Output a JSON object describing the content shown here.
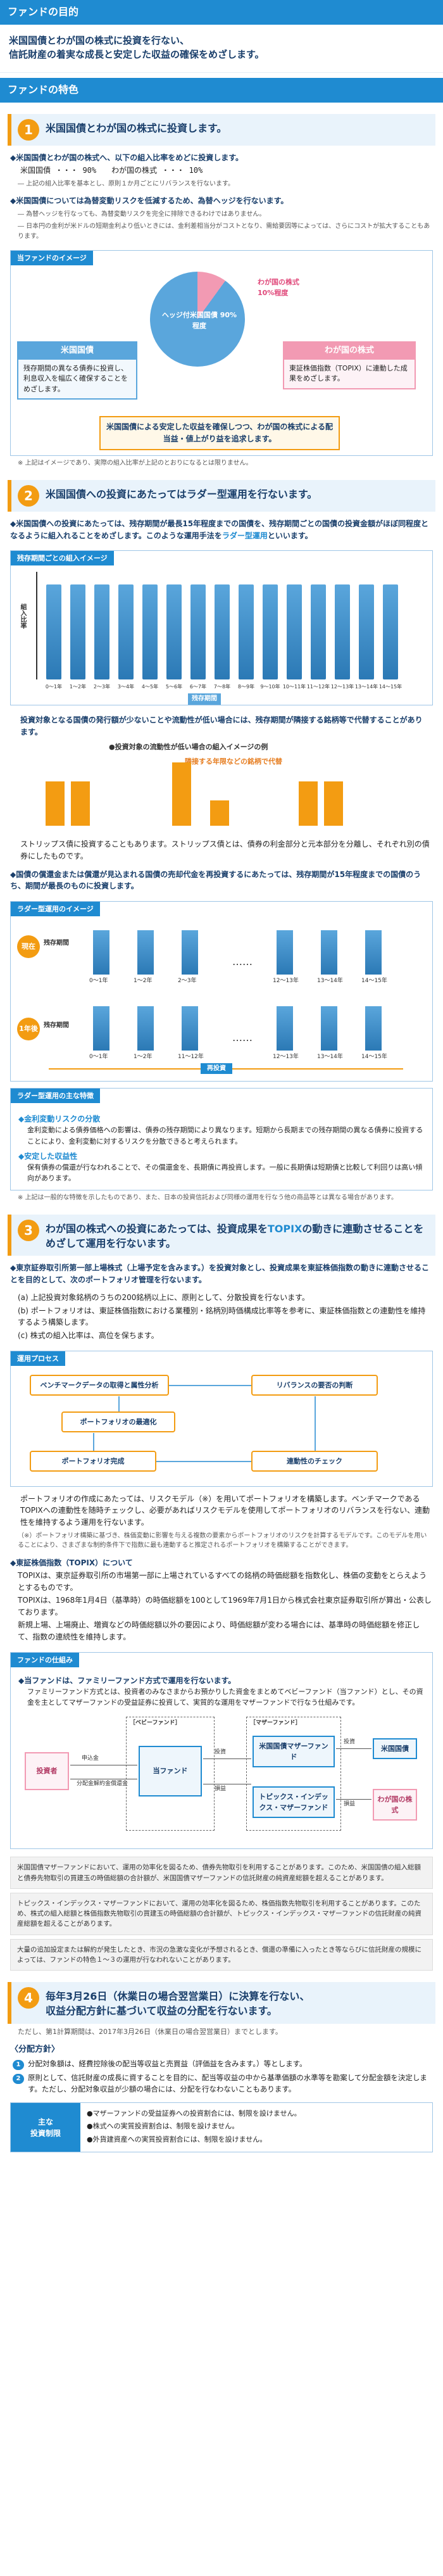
{
  "goal": {
    "header": "ファンドの目的",
    "text_line1": "米国国債とわが国の株式に投資を行ない、",
    "text_line2": "信託財産の着実な成長と安定した収益の確保をめざします。"
  },
  "features_header": "ファンドの特色",
  "f1": {
    "num": "1",
    "title": "米国国債とわが国の株式に投資します。",
    "bullet1": "◆米国国債とわが国の株式へ、以下の組入比率をめどに投資します。",
    "alloc_line": "米国国債 ・・・ 90%　　わが国の株式 ・・・ 10%",
    "note1": "― 上記の組入比率を基本とし、原則１か月ごとにリバランスを行ないます。",
    "bullet2": "◆米国国債については為替変動リスクを低減するため、為替ヘッジを行ないます。",
    "note2": "― 為替ヘッジを行なっても、為替変動リスクを完全に排除できるわけではありません。",
    "note3": "― 日本円の金利が米ドルの短期金利より低いときには、金利差相当分がコストとなり、需給要因等によっては、さらにコストが拡大することもあります。",
    "image_tag": "当ファンドのイメージ",
    "pie_main": "ヘッジ付米国国債 90%程度",
    "pie_small_1": "わが国の株式",
    "pie_small_2": "10%程度",
    "blue_title": "米国国債",
    "blue_text": "残存期間の異なる債券に投資し、利息収入を幅広く確保することをめざします。",
    "pink_title": "わが国の株式",
    "pink_text": "東証株価指数（TOPIX）に連動した成果をめざします。",
    "summary": "米国国債による安定した収益を確保しつつ、わが国の株式による配当益・値上がり益を追求します。",
    "footnote": "※ 上記はイメージであり、実際の組入比率が上記のとおりになるとは限りません。"
  },
  "f2": {
    "num": "2",
    "title": "米国国債への投資にあたってはラダー型運用を行ないます。",
    "bullet1": "◆米国国債への投資にあたっては、残存期間が最長15年程度までの国債を、残存期間ごとの国債の投資金額がほぼ同程度となるように組入れることをめざします。このような運用手法を",
    "bullet1_accent": "ラダー型運用",
    "bullet1_tail": "といいます。",
    "image_tag": "残存期間ごとの組入イメージ",
    "ylabel": "組入比率",
    "bar_labels": [
      "0〜1年",
      "1〜2年",
      "2〜3年",
      "3〜4年",
      "4〜5年",
      "5〜6年",
      "6〜7年",
      "7〜8年",
      "8〜9年",
      "9〜10年",
      "10〜11年",
      "11〜12年",
      "12〜13年",
      "13〜14年",
      "14〜15年"
    ],
    "xcaption": "残存期間",
    "liq_text": "投資対象となる国債の発行額が少ないことや流動性が低い場合には、残存期間が隣接する銘柄等で代替することがあります。",
    "liq_legend": "●投資対象の流動性が低い場合の組入イメージの例",
    "liq_tag": "隣接する年限などの銘柄で代替",
    "strips_text": "ストリップス債に投資することもあります。ストリップス債とは、債券の利金部分と元本部分を分離し、それぞれ別の債券にしたものです。",
    "bullet2": "◆国債の償還金または償還が見込まれる国債の売却代金を再投資するにあたっては、残存期間が15年程度までの国債のうち、期間が最長のものに投資します。",
    "ladder_tag": "ラダー型運用のイメージ",
    "now_label": "現在",
    "oneyear_label": "1年後",
    "remaining_label": "残存期間",
    "ladder_top_x": [
      "0〜1年",
      "1〜2年",
      "2〜3年",
      "12〜13年",
      "13〜14年",
      "14〜15年"
    ],
    "ladder_bot_x": [
      "0〜1年",
      "1〜2年",
      "11〜12年",
      "12〜13年",
      "13〜14年",
      "14〜15年"
    ],
    "reinvest_label": "再投資",
    "feat_tag": "ラダー型運用の主な特徴",
    "feat1_title": "◆金利変動リスクの分散",
    "feat1_text": "金利変動による債券価格への影響は、債券の残存期間により異なります。短期から長期までの残存期間の異なる債券に投資することにより、金利変動に対するリスクを分散できると考えられます。",
    "feat2_title": "◆安定した収益性",
    "feat2_text": "保有債券の償還が行なわれることで、その償還金を、長期債に再投資します。一般に長期債は短期債と比較して利回りは高い傾向があります。",
    "footnote": "※ 上記は一般的な特徴を示したものであり、また、日本の投資信託および同様の運用を行なう他の商品等とは異なる場合があります。"
  },
  "f3": {
    "num": "3",
    "title_a": "わが国の株式への投資にあたっては、投資成果を",
    "title_accent": "TOPIX",
    "title_b": "の動きに連動させることをめざして運用を行ないます。",
    "bullet1": "◆東京証券取引所第一部上場株式（上場予定を含みます。）を投資対象とし、投資成果を東証株価指数の動きに連動させることを目的として、次のポートフォリオ管理を行ないます。",
    "item_a": "(a) 上記投資対象銘柄のうちの200銘柄以上に、原則として、分散投資を行ないます。",
    "item_b": "(b) ポートフォリオは、東証株価指数における業種別・銘柄別時価構成比率等を参考に、東証株価指数との連動性を維持するよう構築します。",
    "item_c": "(c) 株式の組入比率は、高位を保ちます。",
    "proc_tag": "運用プロセス",
    "proc1": "ベンチマークデータの取得と属性分析",
    "proc2": "リバランスの要否の判断",
    "proc3": "ポートフォリオの最適化",
    "proc4": "ポートフォリオ完成",
    "proc5": "連動性のチェック",
    "proc_text": "ポートフォリオの作成にあたっては、リスクモデル（※）を用いてポートフォリオを構築します。ベンチマークであるTOPIXへの連動性を随時チェックし、必要があればリスクモデルを使用してポートフォリオのリバランスを行ない、連動性を維持するよう運用を行ないます。",
    "proc_note": "（※）ポートフォリオ構築に基づき、株価変動に影響を与える複数の要素からポートフォリオのリスクを計算するモデルです。このモデルを用いることにより、さまざまな制約条件下で指数に最も連動すると推定されるポートフォリオを構築することができます。",
    "topix_title": "◆東証株価指数（TOPIX）について",
    "topix_text1": "TOPIXは、東京証券取引所の市場第一部に上場されているすべての銘柄の時価総額を指数化し、株価の変動をとらえようとするものです。",
    "topix_text2": "TOPIXは、1968年1月4日（基準時）の時価総額を100として1969年7月1日から株式会社東京証券取引所が算出・公表しております。",
    "topix_text3": "新規上場、上場廃止、増資などの時価総額以外の要因により、時価総額が変わる場合には、基準時の時価総額を修正して、指数の連続性を維持します。",
    "scheme_tag": "ファンドの仕組み",
    "scheme_bullet": "◆当ファンドは、ファミリーファンド方式で運用を行ないます。",
    "scheme_text": "ファミリーファンド方式とは、投資者のみなさまからお預かりした資金をまとめてベビーファンド（当ファンド）とし、その資金を主としてマザーファンドの受益証券に投資して、実質的な運用をマザーファンドで行なう仕組みです。",
    "investor": "投資者",
    "baby_label": "［ベビーファンド］",
    "this_fund": "当ファンド",
    "mother_label": "［マザーファンド］",
    "mother1": "米国国債マザーファンド",
    "mother2": "トピックス・インデックス・マザーファンド",
    "target1": "米国国債",
    "target2": "わが国の株式",
    "apply": "申込金",
    "distribute": "分配金解約金償還金",
    "invest": "投資",
    "returns": "損益",
    "gray1": "米国国債マザーファンドにおいて、運用の効率化を図るため、債券先物取引を利用することがあります。このため、米国国債の組入総額と債券先物取引の買建玉の時価総額の合計額が、米国国債マザーファンドの信託財産の純資産総額を超えることがあります。",
    "gray2": "トピックス・インデックス・マザーファンドにおいて、運用の効率化を図るため、株価指数先物取引を利用することがあります。このため、株式の組入総額と株価指数先物取引の買建玉の時価総額の合計額が、トピックス・インデックス・マザーファンドの信託財産の純資産総額を超えることがあります。",
    "gray3": "大量の追加設定または解約が発生したとき、市況の急激な変化が予想されるとき、償還の準備に入ったとき等ならびに信託財産の規模によっては、ファンドの特色１〜３の運用が行なわれないことがあります。"
  },
  "f4": {
    "num": "4",
    "title_line1": "毎年3月26日（休業日の場合翌営業日）に決算を行ない、",
    "title_line2": "収益分配方針に基づいて収益の分配を行ないます。",
    "note": "ただし、第1計算期間は、2017年3月26日（休業日の場合翌営業日）までとします。",
    "dist_head": "〈分配方針〉",
    "d1": "分配対象額は、経費控除後の配当等収益と売買益（評価益を含みます。）等とします。",
    "d2": "原則として、信託財産の成長に資することを目的に、配当等収益の中から基準価額の水準等を勘案して分配金額を決定します。ただし、分配対象収益が少額の場合には、分配を行なわないこともあります。",
    "risk_label_1": "主な",
    "risk_label_2": "投資制限",
    "r1": "●マザーファンドの受益証券への投資割合には、制限を設けません。",
    "r2": "●株式への実質投資割合は、制限を設けません。",
    "r3": "●外貨建資産への実質投資割合には、制限を設けません。"
  }
}
